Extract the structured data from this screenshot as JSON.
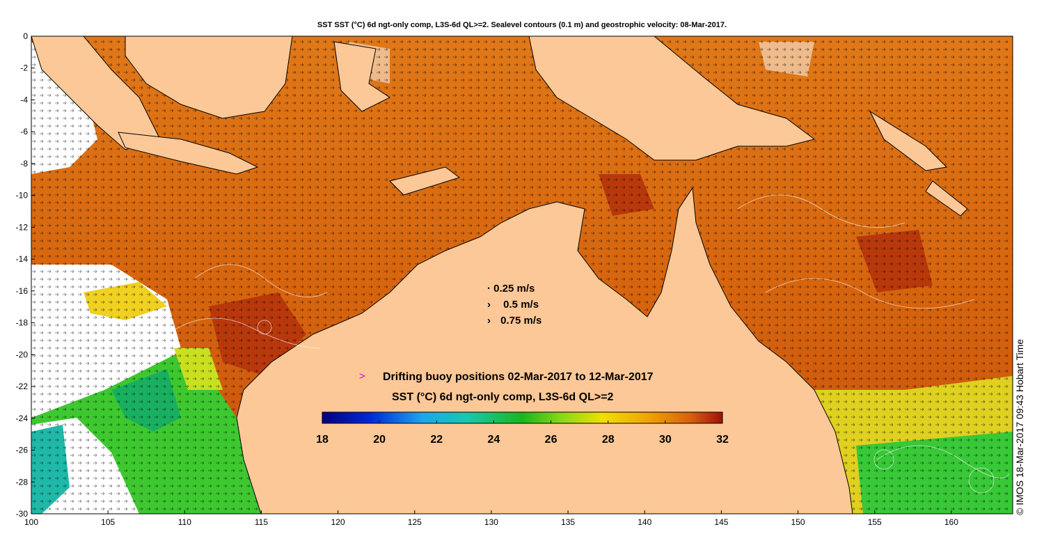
{
  "title": "SST SST (°C) 6d ngt-only comp, L3S-6d QL>=2. Sealevel contours (0.1 m) and geostrophic velocity: 08-Mar-2017.",
  "copyright": "© IMOS 18-Mar-2017 09:43 Hobart Time",
  "velocity_legend": {
    "items": [
      {
        "marker": "·",
        "label": "0.25 m/s"
      },
      {
        "marker": "›",
        "label": "0.5 m/s"
      },
      {
        "marker": "›",
        "label": "0.75 m/s"
      }
    ]
  },
  "buoy_legend": {
    "marker": ">",
    "label": "Drifting buoy positions 02-Mar-2017 to 12-Mar-2017",
    "color": "#d000d0"
  },
  "colorbar": {
    "title": "SST (°C) 6d ngt-only comp, L3S-6d QL>=2",
    "ticks": [
      "18",
      "20",
      "22",
      "24",
      "26",
      "28",
      "30",
      "32"
    ],
    "min": 18,
    "max": 32
  },
  "axes": {
    "lon_ticks": [
      "100",
      "105",
      "110",
      "115",
      "120",
      "125",
      "130",
      "135",
      "140",
      "145",
      "150",
      "155",
      "160"
    ],
    "lat_ticks": [
      "0",
      "-2",
      "-4",
      "-6",
      "-8",
      "-10",
      "-12",
      "-14",
      "-16",
      "-18",
      "-20",
      "-22",
      "-24",
      "-26",
      "-28",
      "-30"
    ],
    "lon_range": [
      100,
      164
    ],
    "lat_range": [
      -30,
      0
    ]
  },
  "colors": {
    "land": "#fdc897",
    "warm": "#d66a10",
    "hot": "#b8360c",
    "cool": "#22c23c",
    "cold": "#14a8b8",
    "ocean_missing": "#ffffff"
  }
}
